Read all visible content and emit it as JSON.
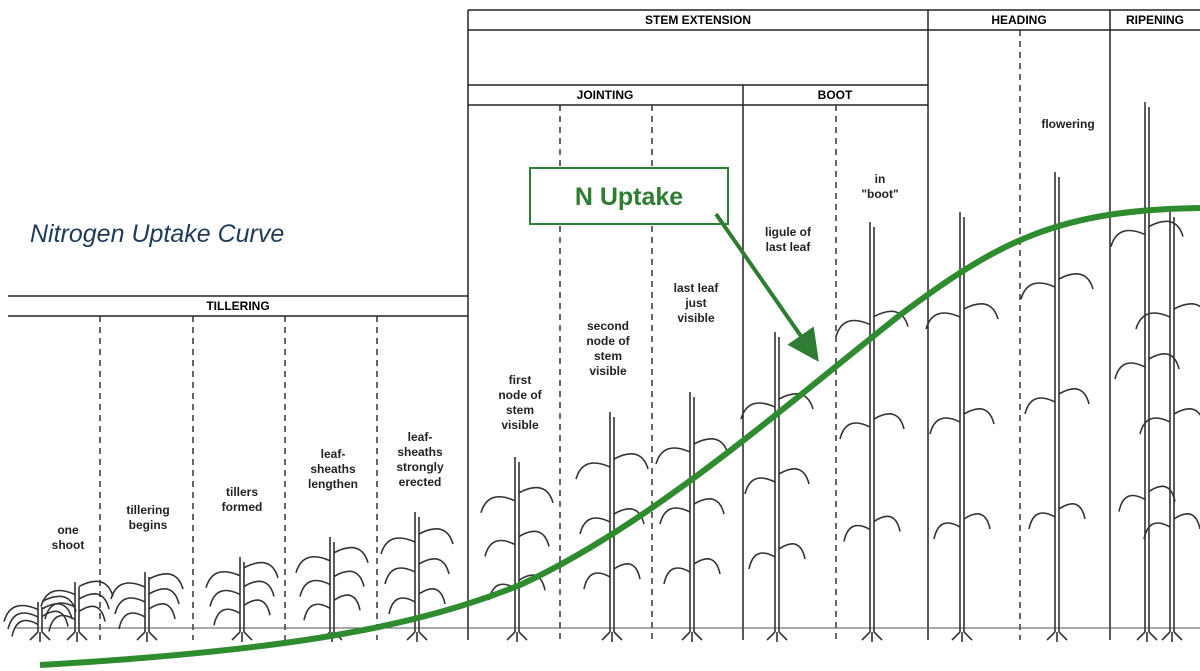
{
  "title": "Nitrogen Uptake Curve",
  "callout": "N Uptake",
  "phases": [
    "TILLERING",
    "STEM EXTENSION",
    "HEADING",
    "RIPENING"
  ],
  "subphases": [
    "JOINTING",
    "BOOT"
  ],
  "stages": [
    [
      "one",
      "shoot"
    ],
    [
      "tillering",
      "begins"
    ],
    [
      "tillers",
      "formed"
    ],
    [
      "leaf-",
      "sheaths",
      "lengthen"
    ],
    [
      "leaf-",
      "sheaths",
      "strongly",
      "erected"
    ],
    [
      "first",
      "node of",
      "stem",
      "visible"
    ],
    [
      "second",
      "node of",
      "stem",
      "visible"
    ],
    [
      "last leaf",
      "just",
      "visible"
    ],
    [
      "ligule of",
      "last leaf"
    ],
    [
      "in",
      "\"boot\""
    ],
    [
      "flowering"
    ]
  ]
}
